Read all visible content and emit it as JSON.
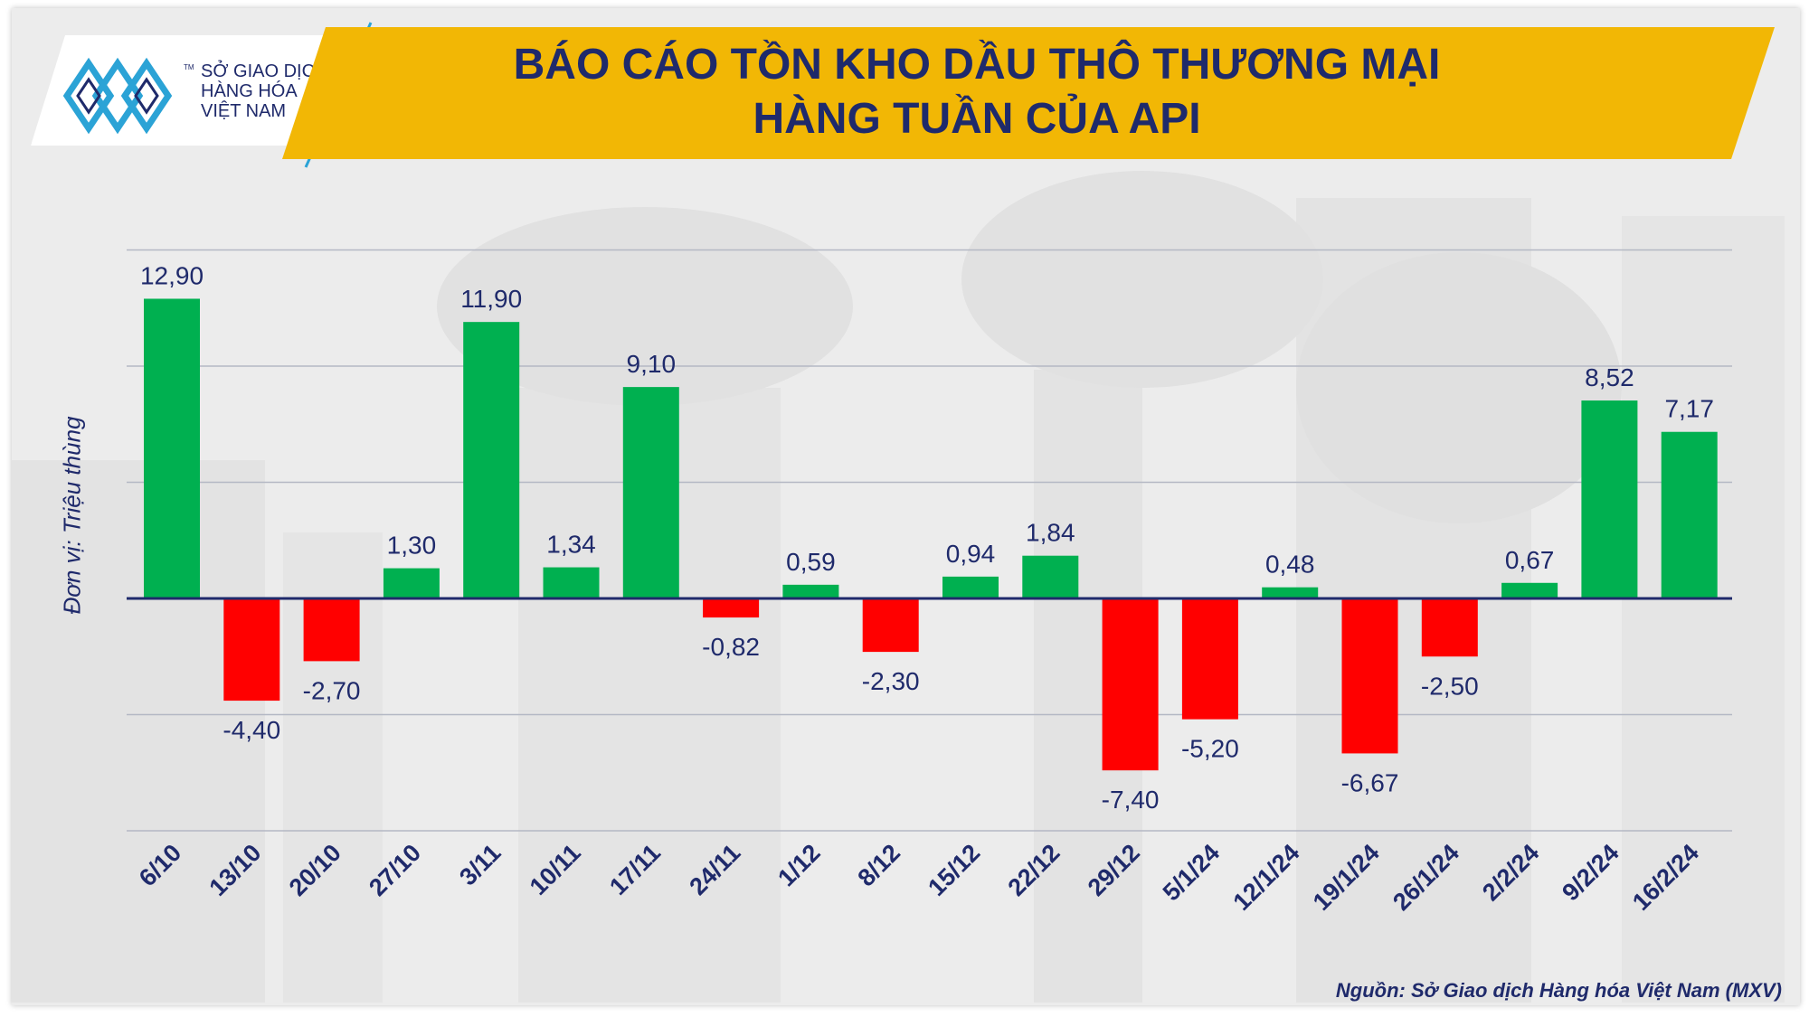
{
  "header": {
    "title_line1": "BÁO CÁO TỒN KHO DẦU THÔ THƯƠNG MẠI",
    "title_line2": "HÀNG TUẦN CỦA API"
  },
  "logo": {
    "line1": "SỞ GIAO DỊCH",
    "line2": "HÀNG HÓA",
    "line3": "VIỆT NAM",
    "tm": "TM"
  },
  "colors": {
    "banner": "#f2b705",
    "title": "#1f2a6b",
    "positive": "#00b050",
    "negative": "#ff0000",
    "axis": "#1f2a6b",
    "grid": "#b4b8c4"
  },
  "chart_data": {
    "type": "bar",
    "title": "BÁO CÁO TỒN KHO DẦU THÔ THƯƠNG MẠI HÀNG TUẦN CỦA API",
    "ylabel": "Đơn vị: Triệu thùng",
    "xlabel": "",
    "ylim": [
      -10,
      15
    ],
    "grid": true,
    "categories": [
      "6/10",
      "13/10",
      "20/10",
      "27/10",
      "3/11",
      "10/11",
      "17/11",
      "24/11",
      "1/12",
      "8/12",
      "15/12",
      "22/12",
      "29/12",
      "5/1/24",
      "12/1/24",
      "19/1/24",
      "26/1/24",
      "2/2/24",
      "9/2/24",
      "16/2/24"
    ],
    "values": [
      12.9,
      -4.4,
      -2.7,
      1.3,
      11.9,
      1.34,
      9.1,
      -0.82,
      0.59,
      -2.3,
      0.94,
      1.84,
      -7.4,
      -5.2,
      0.48,
      -6.67,
      -2.5,
      0.67,
      8.52,
      7.17
    ],
    "labels": [
      "12,90",
      "-4,40",
      "-2,70",
      "1,30",
      "11,90",
      "1,34",
      "9,10",
      "-0,82",
      "0,59",
      "-2,30",
      "0,94",
      "1,84",
      "-7,40",
      "-5,20",
      "0,48",
      "-6,67",
      "-2,50",
      "0,67",
      "8,52",
      "7,17"
    ]
  },
  "source": "Nguồn: Sở Giao dịch Hàng hóa Việt Nam (MXV)"
}
